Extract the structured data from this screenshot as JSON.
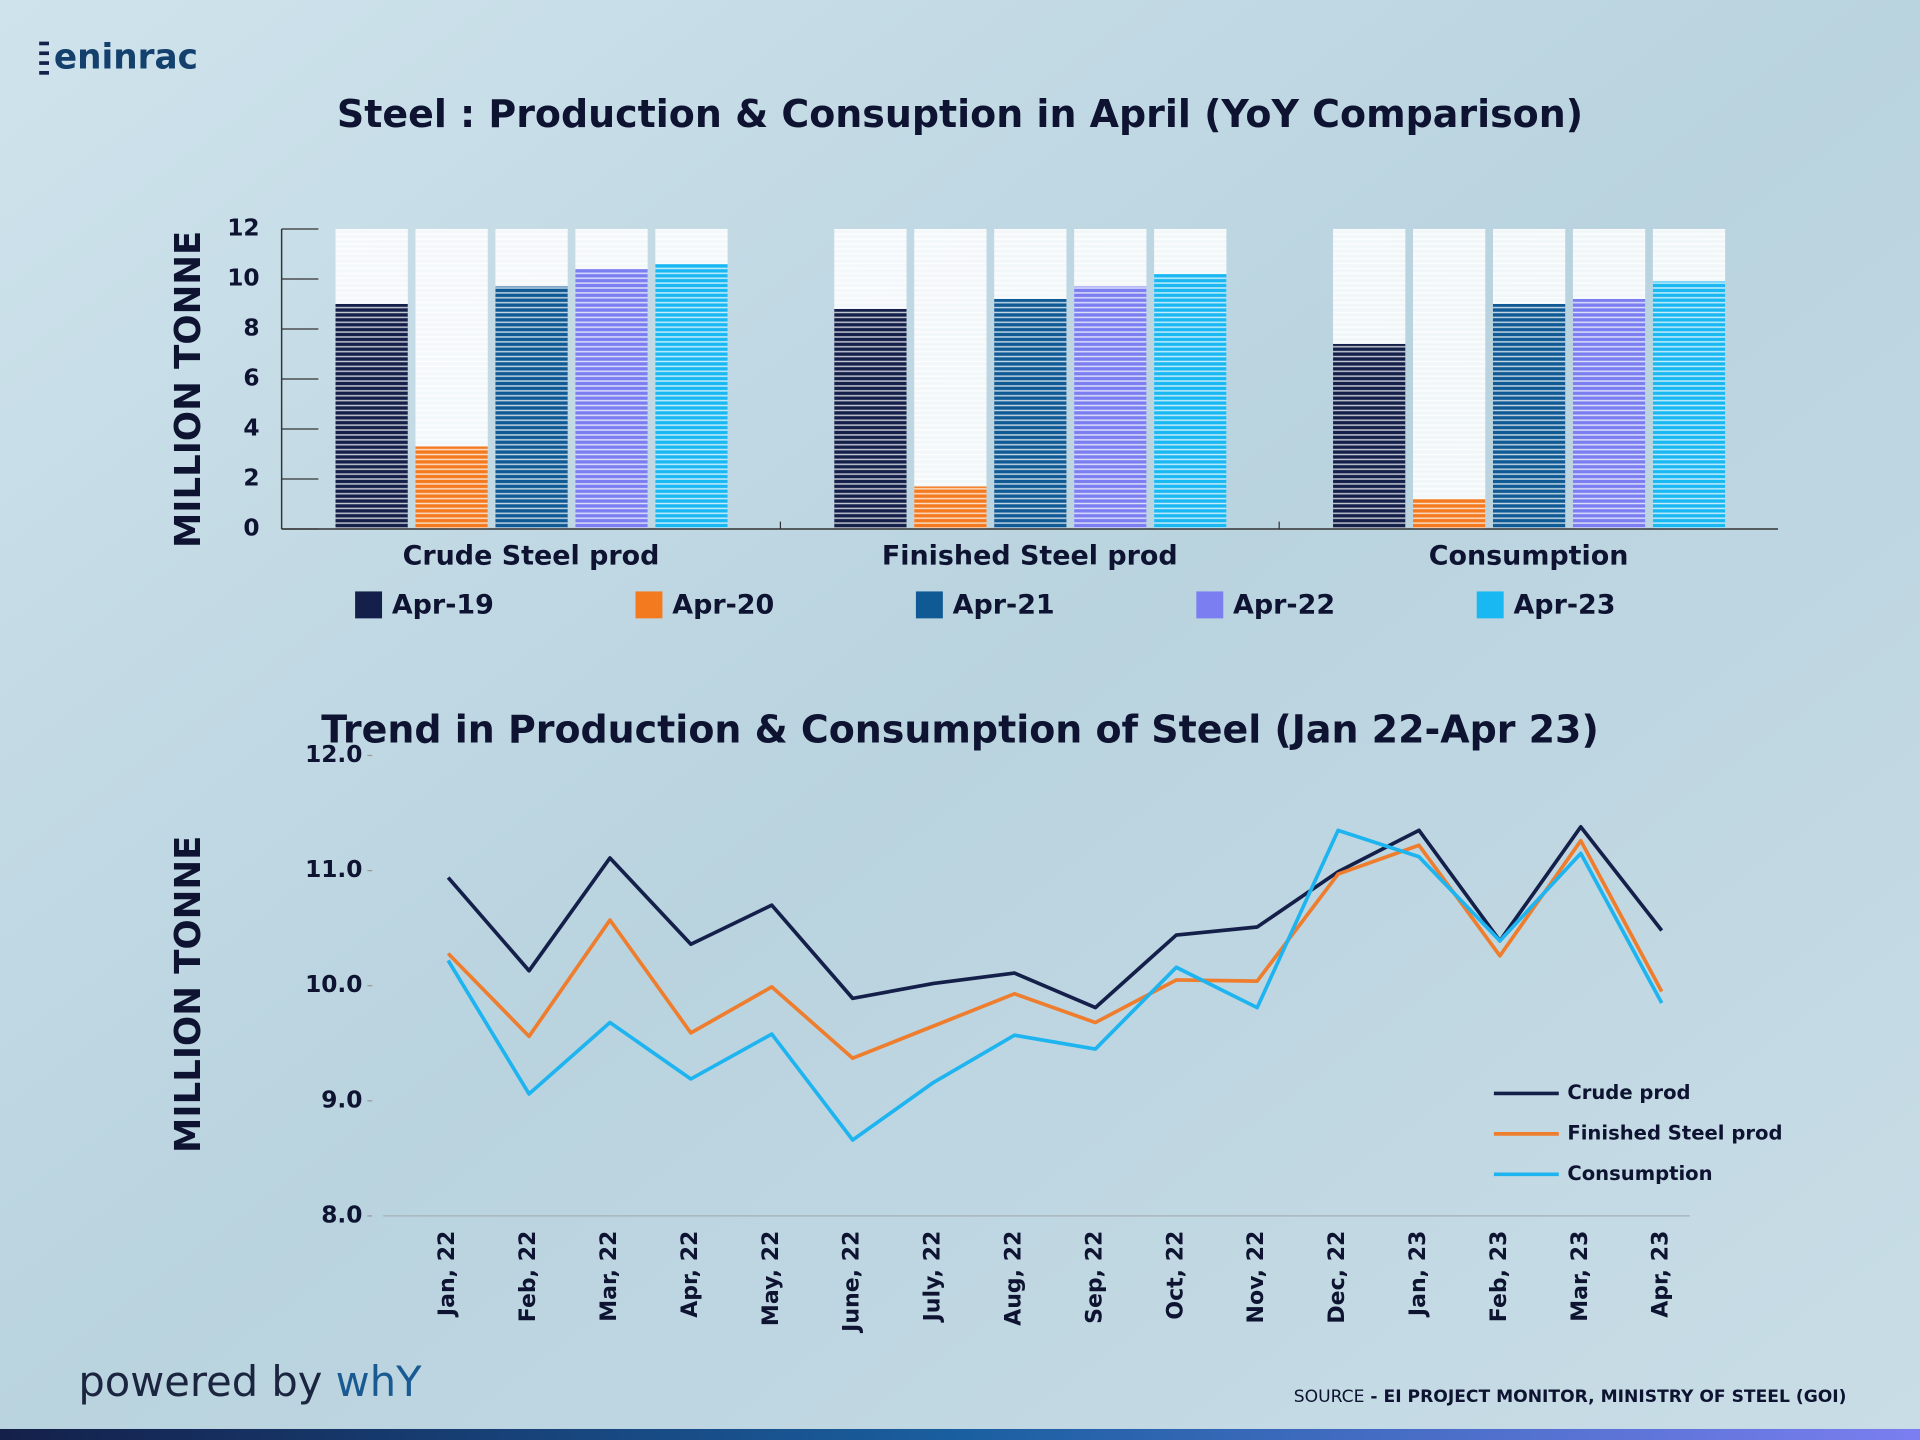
{
  "header": {
    "logo": "eninrac"
  },
  "footer": {
    "powered_by": "powered by ",
    "brand": "whY",
    "source_label": "SOURCE",
    "source_text": " - EI PROJECT MONITOR, MINISTRY OF STEEL (GOI)"
  },
  "chart_data": [
    {
      "type": "bar",
      "title": "Steel : Production & Consuption in April (YoY Comparison)",
      "ylabel": "MILLION TONNE",
      "categories": [
        "Crude Steel prod",
        "Finished Steel prod",
        "Consumption"
      ],
      "series": [
        {
          "name": "Apr-19",
          "color": "#14204a",
          "values": [
            9.0,
            8.8,
            7.4
          ]
        },
        {
          "name": "Apr-20",
          "color": "#f47a20",
          "values": [
            3.3,
            1.7,
            1.2
          ]
        },
        {
          "name": "Apr-21",
          "color": "#0f5a94",
          "values": [
            9.7,
            9.2,
            9.0
          ]
        },
        {
          "name": "Apr-22",
          "color": "#7b7ef0",
          "values": [
            10.4,
            9.7,
            9.2
          ]
        },
        {
          "name": "Apr-23",
          "color": "#1ab8f2",
          "values": [
            10.6,
            10.2,
            9.9
          ]
        }
      ],
      "ylim": [
        0,
        12
      ],
      "yticks": [
        0,
        2,
        4,
        6,
        8,
        10,
        12
      ],
      "legend": "bottom"
    },
    {
      "type": "line",
      "title": "Trend in Production & Consumption of Steel (Jan 22-Apr 23)",
      "ylabel": "MILLION TONNE",
      "categories": [
        "Jan, 22",
        "Feb, 22",
        "Mar, 22",
        "Apr, 22",
        "May, 22",
        "June, 22",
        "July, 22",
        "Aug, 22",
        "Sep, 22",
        "Oct, 22",
        "Nov, 22",
        "Dec, 22",
        "Jan, 23",
        "Feb, 23",
        "Mar, 23",
        "Apr, 23"
      ],
      "series": [
        {
          "name": "Crude prod",
          "color": "#14204a",
          "values": [
            10.94,
            10.13,
            11.11,
            10.36,
            10.7,
            9.89,
            10.02,
            10.11,
            9.81,
            10.44,
            10.51,
            10.99,
            11.35,
            10.39,
            11.38,
            10.48
          ]
        },
        {
          "name": "Finished Steel prod",
          "color": "#ef7d2e",
          "values": [
            10.28,
            9.56,
            10.57,
            9.59,
            9.99,
            9.37,
            9.65,
            9.93,
            9.68,
            10.05,
            10.04,
            10.97,
            11.22,
            10.26,
            11.26,
            9.95
          ]
        },
        {
          "name": "Consumption",
          "color": "#1db4f0",
          "values": [
            10.22,
            9.06,
            9.68,
            9.19,
            9.58,
            8.66,
            9.16,
            9.57,
            9.45,
            10.16,
            9.81,
            11.35,
            11.12,
            10.39,
            11.15,
            9.85
          ]
        }
      ],
      "ylim": [
        8,
        12
      ],
      "yticks": [
        {
          "value": 8,
          "label": "8.0"
        },
        {
          "value": 9,
          "label": "9.0"
        },
        {
          "value": 10,
          "label": "10.0"
        },
        {
          "value": 11,
          "label": "11.0"
        },
        {
          "value": 12,
          "label": "12.0"
        }
      ],
      "legend": "right"
    }
  ]
}
